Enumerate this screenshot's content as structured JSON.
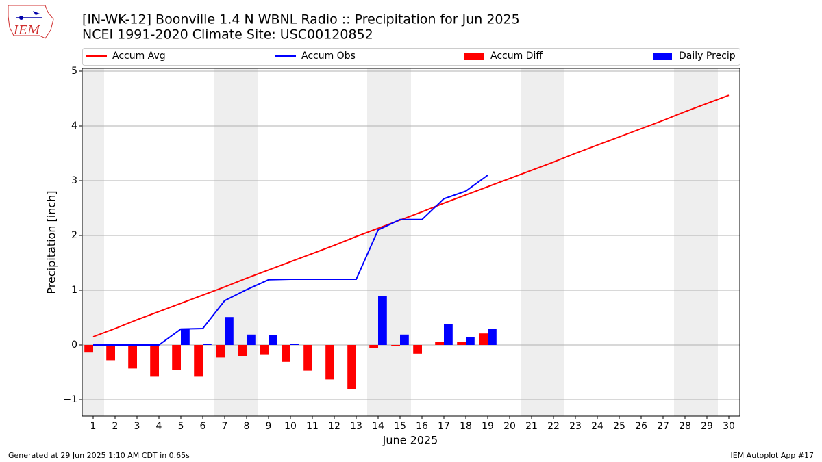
{
  "chart_data": {
    "type": "bar",
    "title": "[IN-WK-12] Boonville 1.4 N WBNL Radio :: Precipitation for Jun 2025",
    "subtitle": "NCEI 1991-2020 Climate Site: USC00120852",
    "xlabel": "June 2025",
    "ylabel": "Precipitation [inch]",
    "footer_left": "Generated at 29 Jun 2025 1:10 AM CDT in 0.65s",
    "footer_right": "IEM Autoplot App #17",
    "logo_text": "IEM",
    "x": [
      1,
      2,
      3,
      4,
      5,
      6,
      7,
      8,
      9,
      10,
      11,
      12,
      13,
      14,
      15,
      16,
      17,
      18,
      19,
      20,
      21,
      22,
      23,
      24,
      25,
      26,
      27,
      28,
      29,
      30
    ],
    "weekends": [
      1,
      7,
      8,
      14,
      15,
      21,
      22,
      28,
      29
    ],
    "xlim": [
      0.5,
      30.5
    ],
    "xticks": [
      1,
      2,
      3,
      4,
      5,
      6,
      7,
      8,
      9,
      10,
      11,
      12,
      13,
      14,
      15,
      16,
      17,
      18,
      19,
      20,
      21,
      22,
      23,
      24,
      25,
      26,
      27,
      28,
      29,
      30
    ],
    "ylim": [
      -1.3,
      5.05
    ],
    "yticks": [
      {
        "value": -1,
        "label": "−1"
      },
      0,
      1,
      2,
      3,
      4,
      5
    ],
    "grid": true,
    "series": [
      {
        "name": "Accum Avg",
        "type": "line",
        "color": "#ff0000",
        "values": [
          0.15,
          0.3,
          0.46,
          0.61,
          0.76,
          0.91,
          1.06,
          1.22,
          1.37,
          1.52,
          1.67,
          1.82,
          1.98,
          2.13,
          2.28,
          2.43,
          2.59,
          2.74,
          2.89,
          3.04,
          3.19,
          3.34,
          3.5,
          3.65,
          3.8,
          3.95,
          4.1,
          4.26,
          4.41,
          4.56
        ]
      },
      {
        "name": "Accum Obs",
        "type": "line",
        "color": "#0000ff",
        "values": [
          0,
          0,
          0,
          0,
          0.29,
          0.3,
          0.81,
          1.01,
          1.19,
          1.2,
          1.2,
          1.2,
          1.2,
          2.1,
          2.29,
          2.29,
          2.67,
          2.81,
          3.1,
          null,
          null,
          null,
          null,
          null,
          null,
          null,
          null,
          null,
          null,
          null
        ]
      },
      {
        "name": "Accum Diff",
        "type": "bar",
        "offset": -1,
        "color": "#ff0000",
        "values": [
          -0.14,
          -0.28,
          -0.43,
          -0.58,
          -0.45,
          -0.58,
          -0.23,
          -0.2,
          -0.17,
          -0.31,
          -0.47,
          -0.63,
          -0.8,
          -0.06,
          -0.02,
          -0.16,
          0.06,
          0.06,
          0.21,
          null,
          null,
          null,
          null,
          null,
          null,
          null,
          null,
          null,
          null,
          null
        ]
      },
      {
        "name": "Daily Precip",
        "type": "bar",
        "offset": 1,
        "color": "#0000ff",
        "values": [
          0,
          0,
          0,
          0,
          0.29,
          0.02,
          0.51,
          0.19,
          0.18,
          0.02,
          0,
          0,
          0,
          0.9,
          0.19,
          0,
          0.38,
          0.14,
          0.29,
          null,
          null,
          null,
          null,
          null,
          null,
          null,
          null,
          null,
          null,
          null
        ]
      }
    ]
  }
}
